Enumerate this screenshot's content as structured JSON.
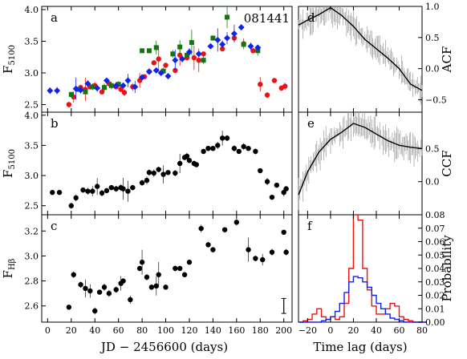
{
  "figure": {
    "object_name": "081441",
    "xlabel_left": "JD  −  2456600 (days)",
    "xlabel_right": "Time lag (days)",
    "panel_letters": [
      "a",
      "b",
      "c",
      "d",
      "e",
      "f"
    ]
  },
  "chart_data": [
    {
      "panel": "a",
      "type": "scatter",
      "ylabel": "F5100",
      "xlim": [
        -5,
        207
      ],
      "ylim": [
        2.38,
        4.05
      ],
      "xticks": [
        0,
        20,
        40,
        60,
        80,
        100,
        120,
        140,
        160,
        180,
        200
      ],
      "yticks": [
        2.5,
        3.0,
        3.5,
        4.0
      ],
      "ytick_labels": [
        "2.5",
        "3.0",
        "3.5",
        "4.0"
      ],
      "series": [
        {
          "marker": "circle",
          "color": "#ee1111",
          "points": [
            [
              18,
              2.5
            ],
            [
              22,
              2.62
            ],
            [
              28,
              2.77
            ],
            [
              32,
              2.74
            ],
            [
              36,
              2.78
            ],
            [
              40,
              2.8
            ],
            [
              46,
              2.7
            ],
            [
              52,
              2.83
            ],
            [
              58,
              2.78
            ],
            [
              62,
              2.74
            ],
            [
              65,
              2.69
            ],
            [
              72,
              2.78
            ],
            [
              78,
              2.88
            ],
            [
              82,
              2.94
            ],
            [
              86,
              3.02
            ],
            [
              90,
              3.16
            ],
            [
              94,
              3.22
            ],
            [
              100,
              3.12
            ],
            [
              108,
              3.04
            ],
            [
              112,
              3.28
            ],
            [
              118,
              3.24
            ],
            [
              124,
              3.24
            ],
            [
              128,
              3.2
            ],
            [
              132,
              3.3
            ],
            [
              148,
              3.38
            ],
            [
              158,
              3.55
            ],
            [
              166,
              3.46
            ],
            [
              174,
              3.35
            ],
            [
              180,
              2.82
            ],
            [
              186,
              2.65
            ],
            [
              192,
              2.88
            ],
            [
              198,
              2.76
            ],
            [
              201,
              2.79
            ]
          ]
        },
        {
          "marker": "square",
          "color": "#117711",
          "points": [
            [
              20,
              2.66
            ],
            [
              26,
              2.74
            ],
            [
              32,
              2.7
            ],
            [
              38,
              2.78
            ],
            [
              48,
              2.77
            ],
            [
              54,
              2.8
            ],
            [
              60,
              2.82
            ],
            [
              80,
              3.35
            ],
            [
              86,
              3.35
            ],
            [
              92,
              3.4
            ],
            [
              98,
              3.03
            ],
            [
              106,
              3.3
            ],
            [
              112,
              3.41
            ],
            [
              118,
              3.28
            ],
            [
              122,
              3.48
            ],
            [
              132,
              3.2
            ],
            [
              140,
              3.55
            ],
            [
              152,
              3.88
            ],
            [
              166,
              3.45
            ],
            [
              178,
              3.35
            ]
          ]
        },
        {
          "marker": "diamond",
          "color": "#1122ee",
          "points": [
            [
              2,
              2.72
            ],
            [
              8,
              2.72
            ],
            [
              24,
              2.75
            ],
            [
              28,
              2.73
            ],
            [
              34,
              2.83
            ],
            [
              42,
              2.76
            ],
            [
              50,
              2.88
            ],
            [
              58,
              2.8
            ],
            [
              64,
              2.8
            ],
            [
              68,
              2.88
            ],
            [
              74,
              2.78
            ],
            [
              80,
              2.93
            ],
            [
              86,
              3.02
            ],
            [
              92,
              3.04
            ],
            [
              96,
              3.0
            ],
            [
              102,
              2.95
            ],
            [
              108,
              3.2
            ],
            [
              114,
              3.22
            ],
            [
              120,
              3.33
            ],
            [
              128,
              3.3
            ],
            [
              138,
              3.42
            ],
            [
              144,
              3.52
            ],
            [
              148,
              3.45
            ],
            [
              152,
              3.55
            ],
            [
              158,
              3.62
            ],
            [
              164,
              3.72
            ],
            [
              172,
              3.42
            ],
            [
              178,
              3.4
            ]
          ]
        }
      ]
    },
    {
      "panel": "b",
      "type": "scatter",
      "ylabel": "F5100",
      "xlim": [
        -5,
        207
      ],
      "ylim": [
        2.35,
        4.05
      ],
      "yticks": [
        2.5,
        3.0,
        3.5,
        4.0
      ],
      "ytick_labels": [
        "2.5",
        "3.0",
        "3.5",
        "4.0"
      ],
      "series": [
        {
          "marker": "circle",
          "color": "#000000",
          "points": [
            [
              4,
              2.72
            ],
            [
              10,
              2.72
            ],
            [
              20,
              2.5
            ],
            [
              24,
              2.63
            ],
            [
              30,
              2.76
            ],
            [
              34,
              2.74
            ],
            [
              38,
              2.74
            ],
            [
              42,
              2.82
            ],
            [
              46,
              2.71
            ],
            [
              50,
              2.75
            ],
            [
              54,
              2.8
            ],
            [
              58,
              2.78
            ],
            [
              62,
              2.8
            ],
            [
              64,
              2.78
            ],
            [
              68,
              2.74
            ],
            [
              72,
              2.8
            ],
            [
              80,
              2.88
            ],
            [
              84,
              2.92
            ],
            [
              86,
              3.05
            ],
            [
              90,
              3.04
            ],
            [
              94,
              3.1
            ],
            [
              98,
              3.02
            ],
            [
              102,
              3.05
            ],
            [
              108,
              3.04
            ],
            [
              112,
              3.2
            ],
            [
              116,
              3.3
            ],
            [
              118,
              3.32
            ],
            [
              120,
              3.25
            ],
            [
              124,
              3.2
            ],
            [
              126,
              3.18
            ],
            [
              132,
              3.4
            ],
            [
              136,
              3.45
            ],
            [
              140,
              3.45
            ],
            [
              144,
              3.5
            ],
            [
              148,
              3.62
            ],
            [
              152,
              3.62
            ],
            [
              158,
              3.45
            ],
            [
              162,
              3.4
            ],
            [
              166,
              3.48
            ],
            [
              170,
              3.45
            ],
            [
              176,
              3.4
            ],
            [
              180,
              3.08
            ],
            [
              186,
              2.9
            ],
            [
              190,
              2.64
            ],
            [
              194,
              2.84
            ],
            [
              200,
              2.72
            ],
            [
              202,
              2.78
            ]
          ]
        }
      ]
    },
    {
      "panel": "c",
      "type": "scatter",
      "ylabel": "FHβ",
      "xlim": [
        -5,
        207
      ],
      "ylim": [
        2.47,
        3.33
      ],
      "yticks": [
        2.6,
        2.8,
        3.0,
        3.2
      ],
      "ytick_labels": [
        "2.6",
        "2.8",
        "3.0",
        "3.2"
      ],
      "series": [
        {
          "marker": "circle",
          "color": "#000000",
          "points": [
            [
              18,
              2.59
            ],
            [
              22,
              2.85
            ],
            [
              28,
              2.77
            ],
            [
              32,
              2.74
            ],
            [
              36,
              2.72
            ],
            [
              40,
              2.56
            ],
            [
              44,
              2.71
            ],
            [
              48,
              2.75
            ],
            [
              52,
              2.7
            ],
            [
              58,
              2.73
            ],
            [
              62,
              2.78
            ],
            [
              64,
              2.8
            ],
            [
              70,
              2.65
            ],
            [
              78,
              2.9
            ],
            [
              80,
              2.95
            ],
            [
              84,
              2.83
            ],
            [
              88,
              2.75
            ],
            [
              92,
              2.76
            ],
            [
              94,
              2.85
            ],
            [
              100,
              2.75
            ],
            [
              108,
              2.9
            ],
            [
              112,
              2.9
            ],
            [
              116,
              2.85
            ],
            [
              120,
              2.95
            ],
            [
              130,
              3.22
            ],
            [
              136,
              3.09
            ],
            [
              140,
              3.05
            ],
            [
              150,
              3.21
            ],
            [
              160,
              3.27
            ],
            [
              170,
              3.05
            ],
            [
              176,
              2.98
            ],
            [
              182,
              2.97
            ],
            [
              190,
              3.03
            ],
            [
              200,
              3.19
            ],
            [
              202,
              3.03
            ]
          ]
        }
      ]
    },
    {
      "panel": "d",
      "type": "line",
      "ylabel": "ACF",
      "xlim": [
        -28,
        80
      ],
      "ylim": [
        -0.7,
        1.0
      ],
      "yticks": [
        -0.5,
        0.0,
        0.5,
        1.0
      ],
      "ytick_labels": [
        "−0.5",
        "0.0",
        "0.5",
        "1.0"
      ],
      "x": [
        -28,
        -20,
        -10,
        0,
        10,
        20,
        30,
        40,
        50,
        60,
        70,
        80
      ],
      "y": [
        0.7,
        0.78,
        0.87,
        0.98,
        0.85,
        0.68,
        0.47,
        0.32,
        0.17,
        0.0,
        -0.25,
        -0.35
      ]
    },
    {
      "panel": "e",
      "type": "line",
      "ylabel": "CCF",
      "xlim": [
        -28,
        80
      ],
      "ylim": [
        -0.5,
        1.05
      ],
      "yticks": [
        0.0,
        0.5
      ],
      "ytick_labels": [
        "0.0",
        "0.5"
      ],
      "x": [
        -28,
        -20,
        -10,
        0,
        10,
        20,
        30,
        40,
        50,
        60,
        70,
        80
      ],
      "y": [
        -0.2,
        0.15,
        0.45,
        0.64,
        0.75,
        0.88,
        0.82,
        0.72,
        0.62,
        0.55,
        0.52,
        0.5
      ]
    },
    {
      "panel": "f",
      "type": "line",
      "ylabel": "Probability",
      "xlim": [
        -28,
        80
      ],
      "ylim": [
        0,
        0.08
      ],
      "xticks": [
        -20,
        0,
        20,
        40,
        60,
        80
      ],
      "xtick_labels": [
        "−20",
        "0",
        "20",
        "40",
        "60",
        "80"
      ],
      "yticks": [
        0,
        0.01,
        0.02,
        0.03,
        0.04,
        0.05,
        0.06,
        0.07,
        0.08
      ],
      "ytick_labels": [
        "0.00",
        "0.01",
        "0.02",
        "0.03",
        "0.04",
        "0.05",
        "0.06",
        "0.07",
        "0.08"
      ],
      "series": [
        {
          "color": "#ee1111",
          "x": [
            -28,
            -24,
            -20,
            -16,
            -12,
            -8,
            -4,
            0,
            4,
            8,
            12,
            16,
            20,
            24,
            28,
            32,
            36,
            40,
            44,
            48,
            52,
            56,
            60,
            64,
            68,
            72,
            76,
            80
          ],
          "y": [
            0,
            0.001,
            0.002,
            0.006,
            0.01,
            0.004,
            0.002,
            0.004,
            0.002,
            0.004,
            0.014,
            0.04,
            0.08,
            0.076,
            0.04,
            0.024,
            0.012,
            0.006,
            0.006,
            0.01,
            0.014,
            0.012,
            0.004,
            0.002,
            0.001,
            0,
            0,
            0
          ]
        },
        {
          "color": "#1122ee",
          "x": [
            -28,
            -24,
            -20,
            -16,
            -12,
            -8,
            -4,
            0,
            4,
            8,
            12,
            16,
            20,
            24,
            28,
            32,
            36,
            40,
            44,
            48,
            52,
            56,
            60,
            64,
            68,
            72,
            76,
            80
          ],
          "y": [
            0,
            0,
            0,
            0,
            0,
            0.001,
            0.002,
            0.004,
            0.008,
            0.014,
            0.022,
            0.03,
            0.034,
            0.033,
            0.03,
            0.026,
            0.02,
            0.014,
            0.01,
            0.006,
            0.003,
            0.002,
            0.001,
            0,
            0,
            0,
            0,
            0
          ]
        }
      ]
    }
  ]
}
